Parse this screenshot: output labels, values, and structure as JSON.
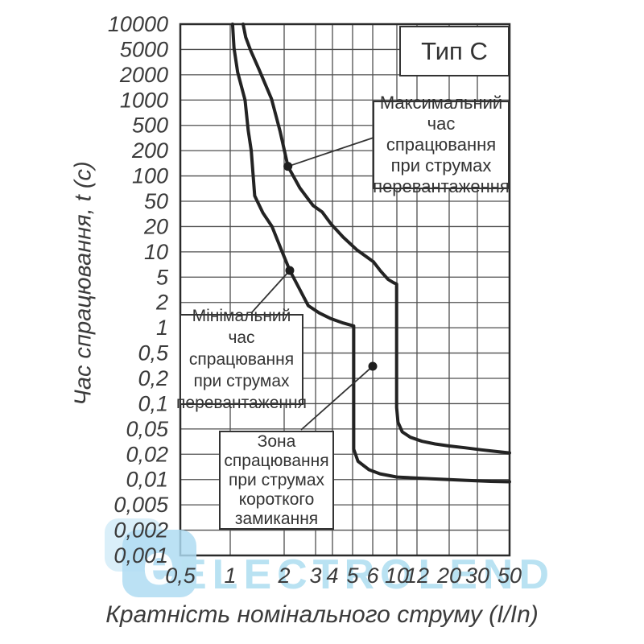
{
  "title_box": "Тип С",
  "axes": {
    "y_ticks": [
      "10000",
      "5000",
      "2000",
      "1000",
      "500",
      "200",
      "100",
      "50",
      "20",
      "10",
      "5",
      "2",
      "1",
      "0,5",
      "0,2",
      "0,1",
      "0,05",
      "0,02",
      "0,01",
      "0,005",
      "0,002",
      "0,001"
    ],
    "x_ticks": [
      "0,5",
      "1",
      "2",
      "3",
      "4",
      "5",
      "6",
      "10",
      "12",
      "20",
      "30",
      "50"
    ]
  },
  "watermark": {
    "logo_letter": "e",
    "text": "ELECTROLEND",
    "color": "#aedcf2"
  },
  "colors": {
    "curve": "#232323",
    "grid": "#4f4f4f",
    "border": "#2a2a2a",
    "text": "#3b3b3b",
    "watermark": "#b4e0f2",
    "box_border": "#333333"
  },
  "chart_data": {
    "type": "line",
    "title": "Тип С",
    "xlabel": "Кратність номінального струму (I/In)",
    "ylabel": "Час спрацювання, t (с)",
    "x_scale": "log",
    "y_scale": "log",
    "xlim": [
      0.5,
      50
    ],
    "ylim": [
      0.001,
      10000
    ],
    "grid": "on",
    "x_tick_values": [
      0.5,
      1,
      2,
      3,
      4,
      5,
      6,
      10,
      12,
      20,
      30,
      50
    ],
    "y_tick_values": [
      10000,
      5000,
      2000,
      1000,
      500,
      200,
      100,
      50,
      20,
      10,
      5,
      2,
      1,
      0.5,
      0.2,
      0.1,
      0.05,
      0.02,
      0.01,
      0.005,
      0.002,
      0.001
    ],
    "series": [
      {
        "name": "Максимальний час спрацювання при струмах перевантаження",
        "points": [
          [
            1.18,
            10000
          ],
          [
            1.22,
            7000
          ],
          [
            1.3,
            4800
          ],
          [
            1.45,
            2400
          ],
          [
            1.7,
            1030
          ],
          [
            1.9,
            400
          ],
          [
            2.1,
            130
          ],
          [
            2.45,
            72
          ],
          [
            2.9,
            43
          ],
          [
            3.35,
            34
          ],
          [
            3.9,
            22
          ],
          [
            4.5,
            15
          ],
          [
            5.19,
            10.6
          ],
          [
            6.1,
            7.6
          ],
          [
            7.1,
            5.9
          ],
          [
            8.3,
            4.6
          ],
          [
            9.3,
            4.1
          ],
          [
            9.95,
            3.9
          ],
          [
            9.95,
            0.09
          ],
          [
            10.1,
            0.06
          ],
          [
            10.5,
            0.045
          ],
          [
            11.3,
            0.037
          ],
          [
            13,
            0.032
          ],
          [
            16,
            0.029
          ],
          [
            20,
            0.027
          ],
          [
            25,
            0.0253
          ],
          [
            32,
            0.0235
          ],
          [
            40,
            0.0222
          ],
          [
            50,
            0.021
          ]
        ]
      },
      {
        "name": "Мінімальний час спрацювання при струмах перевантаження",
        "points": [
          [
            1.03,
            10000
          ],
          [
            1.05,
            5200
          ],
          [
            1.1,
            2200
          ],
          [
            1.21,
            1000
          ],
          [
            1.26,
            420
          ],
          [
            1.31,
            200
          ],
          [
            1.37,
            58
          ],
          [
            1.52,
            33
          ],
          [
            1.71,
            20
          ],
          [
            1.92,
            10.8
          ],
          [
            2.15,
            6.0
          ],
          [
            2.42,
            3.4
          ],
          [
            2.73,
            1.83
          ],
          [
            3.2,
            1.5
          ],
          [
            3.9,
            1.28
          ],
          [
            4.5,
            1.14
          ],
          [
            5.05,
            1.05
          ],
          [
            5.05,
            0.024
          ],
          [
            5.25,
            0.0165
          ],
          [
            5.8,
            0.0131
          ],
          [
            7,
            0.0117
          ],
          [
            10,
            0.0107
          ],
          [
            15,
            0.0102
          ],
          [
            25,
            0.0098
          ],
          [
            37,
            0.0095
          ],
          [
            50,
            0.0094
          ]
        ]
      }
    ],
    "annotations": [
      {
        "text": [
          "Максимальний",
          "час спрацювання",
          "при струмах",
          "перевантаження"
        ],
        "point": [
          2.1,
          130
        ]
      },
      {
        "text": [
          "Мінімальний",
          "час спрацювання",
          "при струмах",
          "перевантаження"
        ],
        "point": [
          2.15,
          6.0
        ]
      },
      {
        "text": [
          "Зона",
          "спрацювання",
          "при струмах",
          "короткого",
          "замикання"
        ],
        "point": [
          6.0,
          0.31
        ]
      }
    ]
  }
}
